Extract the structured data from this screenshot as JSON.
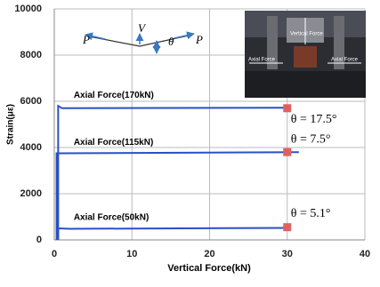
{
  "chart_data": {
    "type": "line",
    "x_label": "Vertical Force(kN)",
    "y_label": "Strain(με)",
    "xlim": [
      0,
      40
    ],
    "xticks": [
      0,
      10,
      20,
      30,
      40
    ],
    "ylim": [
      0,
      10000
    ],
    "yticks": [
      0,
      2000,
      4000,
      6000,
      8000,
      10000
    ],
    "grid": true,
    "marker_color": "#e06060",
    "series": [
      {
        "name": "Axial Force(170kN)",
        "color": "#2a4fc4",
        "x": [
          0.5,
          0.5,
          1,
          30
        ],
        "values": [
          0,
          5800,
          5700,
          5720
        ],
        "marker_x": 30,
        "marker_value": 5700,
        "angle_label": "θ = 17.5°"
      },
      {
        "name": "Axial Force(115kN)",
        "color": "#2a4fc4",
        "x": [
          0.3,
          0.3,
          1,
          31.5
        ],
        "values": [
          0,
          3750,
          3750,
          3800
        ],
        "marker_x": 30,
        "marker_value": 3800,
        "angle_label": "θ = 7.5°"
      },
      {
        "name": "Axial Force(50kN)",
        "color": "#2a4fc4",
        "x": [
          0.5,
          0.5,
          2,
          30
        ],
        "values": [
          0,
          500,
          480,
          520
        ],
        "marker_x": 30,
        "marker_value": 550,
        "angle_label": "θ = 5.1°"
      }
    ],
    "diagram_labels": [
      "P",
      "V",
      "θ",
      "P"
    ],
    "photo_labels": [
      "Vertical Force",
      "Axial Force",
      "Axial Force"
    ]
  }
}
